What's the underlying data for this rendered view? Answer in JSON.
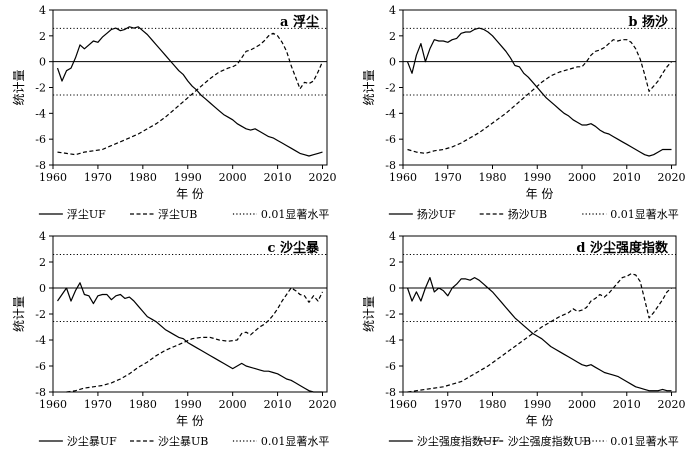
{
  "chart_data": [
    {
      "type": "line",
      "title": "a 浮尘",
      "xlabel": "年 份",
      "ylabel": "统计量",
      "xlim": [
        1960,
        2021
      ],
      "ylim": [
        -8,
        4
      ],
      "xticks": [
        1960,
        1970,
        1980,
        1990,
        2000,
        2010,
        2020
      ],
      "yticks": [
        -8,
        -6,
        -4,
        -2,
        0,
        2,
        4
      ],
      "xtick_labels": [
        "1960",
        "1970",
        "1980",
        "1990",
        "2000",
        "2010",
        "2020"
      ],
      "ytick_labels": [
        "-8",
        "-6",
        "-4",
        "-2",
        "0",
        "2",
        "4"
      ],
      "significance": 2.58,
      "legend": [
        "浮尘UF",
        "浮尘UB",
        "0.01显著水平"
      ],
      "series": [
        {
          "name": "浮尘UF",
          "style": "solid",
          "x": [
            1961,
            1962,
            1963,
            1964,
            1965,
            1966,
            1967,
            1968,
            1969,
            1970,
            1971,
            1972,
            1973,
            1974,
            1975,
            1976,
            1977,
            1978,
            1979,
            1980,
            1981,
            1982,
            1983,
            1984,
            1985,
            1986,
            1987,
            1988,
            1989,
            1990,
            1991,
            1992,
            1993,
            1994,
            1995,
            1996,
            1997,
            1998,
            1999,
            2000,
            2001,
            2002,
            2003,
            2004,
            2005,
            2006,
            2007,
            2008,
            2009,
            2010,
            2011,
            2012,
            2013,
            2014,
            2015,
            2016,
            2017,
            2018,
            2019,
            2020
          ],
          "y": [
            -0.5,
            -1.5,
            -0.7,
            -0.5,
            0.3,
            1.3,
            1.0,
            1.3,
            1.6,
            1.5,
            1.9,
            2.2,
            2.5,
            2.6,
            2.4,
            2.5,
            2.7,
            2.6,
            2.7,
            2.4,
            2.1,
            1.7,
            1.3,
            0.9,
            0.5,
            0.1,
            -0.3,
            -0.7,
            -1.0,
            -1.5,
            -1.9,
            -2.2,
            -2.6,
            -2.9,
            -3.2,
            -3.5,
            -3.8,
            -4.1,
            -4.3,
            -4.5,
            -4.8,
            -5.0,
            -5.2,
            -5.3,
            -5.2,
            -5.4,
            -5.6,
            -5.8,
            -5.9,
            -6.1,
            -6.3,
            -6.5,
            -6.7,
            -6.9,
            -7.1,
            -7.2,
            -7.3,
            -7.2,
            -7.1,
            -7.0
          ]
        },
        {
          "name": "浮尘UB",
          "style": "dashed",
          "x": [
            1961,
            1963,
            1965,
            1967,
            1969,
            1971,
            1973,
            1975,
            1977,
            1979,
            1981,
            1983,
            1985,
            1987,
            1989,
            1991,
            1993,
            1995,
            1997,
            1999,
            2000,
            2001,
            2002,
            2003,
            2004,
            2005,
            2006,
            2007,
            2008,
            2009,
            2010,
            2011,
            2012,
            2013,
            2014,
            2015,
            2016,
            2017,
            2018,
            2019,
            2020
          ],
          "y": [
            -7.0,
            -7.1,
            -7.2,
            -7.0,
            -6.9,
            -6.8,
            -6.5,
            -6.2,
            -5.9,
            -5.6,
            -5.2,
            -4.8,
            -4.3,
            -3.7,
            -3.1,
            -2.5,
            -1.9,
            -1.3,
            -0.8,
            -0.5,
            -0.4,
            -0.2,
            0.3,
            0.8,
            0.9,
            1.1,
            1.3,
            1.6,
            2.0,
            2.2,
            2.0,
            1.5,
            0.8,
            -0.3,
            -1.2,
            -2.1,
            -1.6,
            -1.7,
            -1.5,
            -0.8,
            0.0
          ]
        }
      ]
    },
    {
      "type": "line",
      "title": "b 扬沙",
      "xlabel": "年 份",
      "ylabel": "统计量",
      "xlim": [
        1960,
        2021
      ],
      "ylim": [
        -8,
        4
      ],
      "xticks": [
        1960,
        1970,
        1980,
        1990,
        2000,
        2010,
        2020
      ],
      "yticks": [
        -8,
        -6,
        -4,
        -2,
        0,
        2,
        4
      ],
      "xtick_labels": [
        "1960",
        "1970",
        "1980",
        "1990",
        "2000",
        "2010",
        "2020"
      ],
      "ytick_labels": [
        "-8",
        "-6",
        "-4",
        "-2",
        "0",
        "2",
        "4"
      ],
      "significance": 2.58,
      "legend": [
        "扬沙UF",
        "扬沙UB",
        "0.01显著水平"
      ],
      "series": [
        {
          "name": "扬沙UF",
          "style": "solid",
          "x": [
            1961,
            1962,
            1963,
            1964,
            1965,
            1966,
            1967,
            1968,
            1969,
            1970,
            1971,
            1972,
            1973,
            1974,
            1975,
            1976,
            1977,
            1978,
            1979,
            1980,
            1981,
            1982,
            1983,
            1984,
            1985,
            1986,
            1987,
            1988,
            1989,
            1990,
            1991,
            1992,
            1993,
            1994,
            1995,
            1996,
            1997,
            1998,
            1999,
            2000,
            2001,
            2002,
            2003,
            2004,
            2005,
            2006,
            2007,
            2008,
            2009,
            2010,
            2011,
            2012,
            2013,
            2014,
            2015,
            2016,
            2017,
            2018,
            2019,
            2020
          ],
          "y": [
            0.0,
            -0.9,
            0.5,
            1.4,
            0.0,
            1.0,
            1.7,
            1.6,
            1.6,
            1.5,
            1.7,
            1.8,
            2.2,
            2.3,
            2.3,
            2.5,
            2.6,
            2.5,
            2.3,
            2.0,
            1.6,
            1.2,
            0.8,
            0.3,
            -0.3,
            -0.4,
            -0.9,
            -1.2,
            -1.6,
            -2.0,
            -2.4,
            -2.8,
            -3.1,
            -3.4,
            -3.7,
            -4.0,
            -4.2,
            -4.5,
            -4.7,
            -4.9,
            -4.9,
            -4.8,
            -5.0,
            -5.3,
            -5.5,
            -5.6,
            -5.8,
            -6.0,
            -6.2,
            -6.4,
            -6.6,
            -6.8,
            -7.0,
            -7.2,
            -7.3,
            -7.2,
            -7.0,
            -6.8,
            -6.8,
            -6.8
          ]
        },
        {
          "name": "扬沙UB",
          "style": "dashed",
          "x": [
            1961,
            1963,
            1965,
            1967,
            1969,
            1971,
            1973,
            1975,
            1977,
            1979,
            1981,
            1983,
            1985,
            1987,
            1989,
            1991,
            1993,
            1995,
            1997,
            1999,
            2000,
            2001,
            2002,
            2003,
            2004,
            2005,
            2006,
            2007,
            2008,
            2009,
            2010,
            2011,
            2012,
            2013,
            2014,
            2015,
            2016,
            2017,
            2018,
            2019,
            2020
          ],
          "y": [
            -6.8,
            -7.0,
            -7.1,
            -6.9,
            -6.8,
            -6.6,
            -6.3,
            -5.9,
            -5.5,
            -5.0,
            -4.5,
            -4.0,
            -3.4,
            -2.8,
            -2.2,
            -1.6,
            -1.1,
            -0.8,
            -0.6,
            -0.4,
            -0.4,
            0.0,
            0.5,
            0.8,
            0.9,
            1.1,
            1.4,
            1.7,
            1.6,
            1.7,
            1.7,
            1.5,
            1.0,
            0.2,
            -1.0,
            -2.3,
            -1.9,
            -1.5,
            -0.9,
            -0.4,
            0.0
          ]
        }
      ]
    },
    {
      "type": "line",
      "title": "c 沙尘暴",
      "xlabel": "年 份",
      "ylabel": "统计量",
      "xlim": [
        1960,
        2021
      ],
      "ylim": [
        -8,
        4
      ],
      "xticks": [
        1960,
        1970,
        1980,
        1990,
        2000,
        2010,
        2020
      ],
      "yticks": [
        -8,
        -6,
        -4,
        -2,
        0,
        2,
        4
      ],
      "xtick_labels": [
        "1960",
        "1970",
        "1980",
        "1990",
        "2000",
        "2010",
        "2020"
      ],
      "ytick_labels": [
        "-8",
        "-6",
        "-4",
        "-2",
        "0",
        "2",
        "4"
      ],
      "significance": 2.58,
      "legend": [
        "沙尘暴UF",
        "沙尘暴UB",
        "0.01显著水平"
      ],
      "series": [
        {
          "name": "沙尘暴UF",
          "style": "solid",
          "x": [
            1961,
            1962,
            1963,
            1964,
            1965,
            1966,
            1967,
            1968,
            1969,
            1970,
            1971,
            1972,
            1973,
            1974,
            1975,
            1976,
            1977,
            1978,
            1979,
            1980,
            1981,
            1982,
            1983,
            1984,
            1985,
            1986,
            1987,
            1988,
            1989,
            1990,
            1991,
            1992,
            1993,
            1994,
            1995,
            1996,
            1997,
            1998,
            1999,
            2000,
            2001,
            2002,
            2003,
            2004,
            2005,
            2006,
            2007,
            2008,
            2009,
            2010,
            2011,
            2012,
            2013,
            2014,
            2015,
            2016,
            2017,
            2018,
            2019,
            2020
          ],
          "y": [
            -1.0,
            -0.5,
            0.0,
            -1.0,
            -0.2,
            0.4,
            -0.5,
            -0.6,
            -1.2,
            -0.6,
            -0.5,
            -0.5,
            -0.9,
            -0.6,
            -0.5,
            -0.8,
            -0.7,
            -1.0,
            -1.4,
            -1.8,
            -2.2,
            -2.4,
            -2.6,
            -2.9,
            -3.2,
            -3.4,
            -3.6,
            -3.8,
            -3.9,
            -4.2,
            -4.4,
            -4.6,
            -4.8,
            -5.0,
            -5.2,
            -5.4,
            -5.6,
            -5.8,
            -6.0,
            -6.2,
            -6.0,
            -5.8,
            -6.0,
            -6.1,
            -6.2,
            -6.3,
            -6.4,
            -6.4,
            -6.5,
            -6.6,
            -6.8,
            -7.0,
            -7.1,
            -7.3,
            -7.5,
            -7.7,
            -7.9,
            -8.0,
            -8.0,
            -8.0
          ]
        },
        {
          "name": "沙尘暴UB",
          "style": "dashed",
          "x": [
            1963,
            1965,
            1967,
            1969,
            1971,
            1973,
            1975,
            1977,
            1979,
            1981,
            1983,
            1985,
            1987,
            1989,
            1991,
            1993,
            1995,
            1997,
            1999,
            2001,
            2002,
            2003,
            2004,
            2005,
            2006,
            2007,
            2008,
            2009,
            2010,
            2011,
            2012,
            2013,
            2014,
            2015,
            2016,
            2017,
            2018,
            2019,
            2020
          ],
          "y": [
            -8.0,
            -7.9,
            -7.7,
            -7.6,
            -7.5,
            -7.3,
            -7.0,
            -6.6,
            -6.1,
            -5.7,
            -5.2,
            -4.8,
            -4.5,
            -4.2,
            -3.9,
            -3.8,
            -3.8,
            -4.0,
            -4.1,
            -4.0,
            -3.5,
            -3.4,
            -3.6,
            -3.3,
            -3.0,
            -2.8,
            -2.5,
            -2.1,
            -1.6,
            -1.0,
            -0.5,
            0.0,
            -0.2,
            -0.5,
            -0.6,
            -1.1,
            -0.6,
            -1.0,
            -0.3
          ]
        }
      ]
    },
    {
      "type": "line",
      "title": "d 沙尘强度指数",
      "xlabel": "年 份",
      "ylabel": "统计量",
      "xlim": [
        1960,
        2021
      ],
      "ylim": [
        -8,
        4
      ],
      "xticks": [
        1960,
        1970,
        1980,
        1990,
        2000,
        2010,
        2020
      ],
      "yticks": [
        -8,
        -6,
        -4,
        -2,
        0,
        2,
        4
      ],
      "xtick_labels": [
        "1960",
        "1970",
        "1980",
        "1990",
        "2000",
        "2010",
        "2020"
      ],
      "ytick_labels": [
        "-8",
        "-6",
        "-4",
        "-2",
        "0",
        "2",
        "4"
      ],
      "significance": 2.58,
      "legend": [
        "沙尘强度指数UF",
        "沙尘强度指数UB",
        "0.01显著水平"
      ],
      "series": [
        {
          "name": "沙尘强度指数UF",
          "style": "solid",
          "x": [
            1961,
            1962,
            1963,
            1964,
            1965,
            1966,
            1967,
            1968,
            1969,
            1970,
            1971,
            1972,
            1973,
            1974,
            1975,
            1976,
            1977,
            1978,
            1979,
            1980,
            1981,
            1982,
            1983,
            1984,
            1985,
            1986,
            1987,
            1988,
            1989,
            1990,
            1991,
            1992,
            1993,
            1994,
            1995,
            1996,
            1997,
            1998,
            1999,
            2000,
            2001,
            2002,
            2003,
            2004,
            2005,
            2006,
            2007,
            2008,
            2009,
            2010,
            2011,
            2012,
            2013,
            2014,
            2015,
            2016,
            2017,
            2018,
            2019,
            2020
          ],
          "y": [
            0.0,
            -1.0,
            -0.3,
            -1.0,
            0.0,
            0.8,
            -0.3,
            0.0,
            -0.2,
            -0.6,
            0.0,
            0.3,
            0.7,
            0.7,
            0.6,
            0.8,
            0.6,
            0.3,
            0.0,
            -0.3,
            -0.7,
            -1.1,
            -1.5,
            -1.9,
            -2.3,
            -2.6,
            -2.9,
            -3.2,
            -3.5,
            -3.7,
            -3.9,
            -4.2,
            -4.5,
            -4.7,
            -4.9,
            -5.1,
            -5.3,
            -5.5,
            -5.7,
            -5.9,
            -6.0,
            -5.9,
            -6.1,
            -6.3,
            -6.5,
            -6.6,
            -6.7,
            -6.8,
            -7.0,
            -7.2,
            -7.4,
            -7.6,
            -7.7,
            -7.8,
            -7.9,
            -7.9,
            -7.9,
            -7.8,
            -7.9,
            -7.9
          ]
        },
        {
          "name": "沙尘强度指数UB",
          "style": "dashed",
          "x": [
            1961,
            1963,
            1965,
            1967,
            1969,
            1971,
            1973,
            1975,
            1977,
            1979,
            1981,
            1983,
            1985,
            1987,
            1989,
            1991,
            1993,
            1995,
            1997,
            1998,
            1999,
            2000,
            2001,
            2002,
            2003,
            2004,
            2005,
            2006,
            2007,
            2008,
            2009,
            2010,
            2011,
            2012,
            2013,
            2014,
            2015,
            2016,
            2017,
            2018,
            2019,
            2020
          ],
          "y": [
            -8.0,
            -7.9,
            -7.8,
            -7.7,
            -7.6,
            -7.4,
            -7.2,
            -6.8,
            -6.4,
            -6.0,
            -5.5,
            -5.0,
            -4.5,
            -4.0,
            -3.5,
            -3.0,
            -2.6,
            -2.2,
            -1.9,
            -1.6,
            -1.8,
            -1.7,
            -1.5,
            -1.0,
            -0.8,
            -0.5,
            -0.7,
            -0.4,
            0.0,
            0.4,
            0.8,
            0.9,
            1.1,
            1.0,
            0.5,
            -0.9,
            -2.3,
            -1.9,
            -1.4,
            -0.9,
            -0.3,
            0.0
          ]
        }
      ]
    }
  ]
}
